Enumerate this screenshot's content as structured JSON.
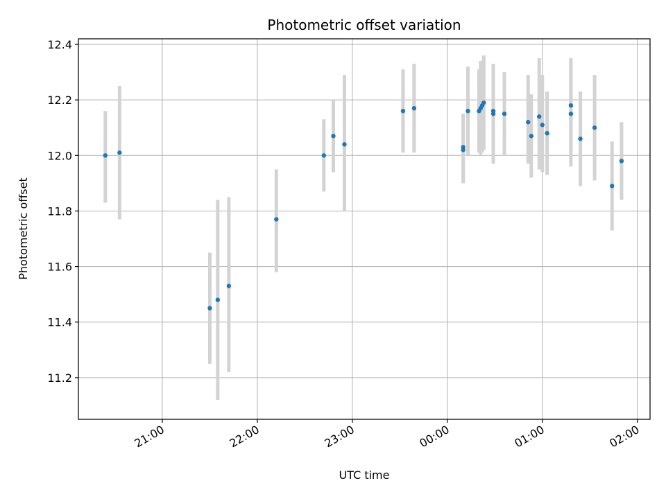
{
  "chart_data": {
    "type": "scatter",
    "title": "Photometric offset variation",
    "xlabel": "UTC time",
    "ylabel": "Photometric offset",
    "x_ticks": [
      "21:00",
      "22:00",
      "23:00",
      "00:00",
      "01:00",
      "02:00"
    ],
    "x_tick_times": [
      "2000-01-01T21:00",
      "2000-01-01T22:00",
      "2000-01-01T23:00",
      "2000-01-02T00:00",
      "2000-01-02T01:00",
      "2000-01-02T02:00"
    ],
    "xlim": [
      "2000-01-01T20:07",
      "2000-01-02T02:08"
    ],
    "y_ticks": [
      "11.2",
      "11.4",
      "11.6",
      "11.8",
      "12.0",
      "12.2",
      "12.4"
    ],
    "ylim": [
      11.05,
      12.42
    ],
    "grid": true,
    "marker_color": "#1f77b4",
    "errorbar_color": "#d3d3d3",
    "points": [
      {
        "x": "2000-01-01T20:24",
        "y": 12.0,
        "low": 11.83,
        "high": 12.16
      },
      {
        "x": "2000-01-01T20:33",
        "y": 12.01,
        "low": 11.77,
        "high": 12.25
      },
      {
        "x": "2000-01-01T21:30",
        "y": 11.45,
        "low": 11.25,
        "high": 11.65
      },
      {
        "x": "2000-01-01T21:35",
        "y": 11.48,
        "low": 11.12,
        "high": 11.84
      },
      {
        "x": "2000-01-01T21:42",
        "y": 11.53,
        "low": 11.22,
        "high": 11.85
      },
      {
        "x": "2000-01-01T22:12",
        "y": 11.77,
        "low": 11.58,
        "high": 11.95
      },
      {
        "x": "2000-01-01T22:42",
        "y": 12.0,
        "low": 11.87,
        "high": 12.13
      },
      {
        "x": "2000-01-01T22:48",
        "y": 12.07,
        "low": 11.94,
        "high": 12.2
      },
      {
        "x": "2000-01-01T22:55",
        "y": 12.04,
        "low": 11.8,
        "high": 12.29
      },
      {
        "x": "2000-01-01T23:32",
        "y": 12.16,
        "low": 12.01,
        "high": 12.31
      },
      {
        "x": "2000-01-01T23:39",
        "y": 12.17,
        "low": 12.01,
        "high": 12.33
      },
      {
        "x": "2000-01-02T00:10",
        "y": 12.02,
        "low": 11.9,
        "high": 12.15
      },
      {
        "x": "2000-01-02T00:10",
        "y": 12.03,
        "low": 11.91,
        "high": 12.15
      },
      {
        "x": "2000-01-02T00:13",
        "y": 12.16,
        "low": 12.0,
        "high": 12.32
      },
      {
        "x": "2000-01-02T00:20",
        "y": 12.16,
        "low": 12.01,
        "high": 12.31
      },
      {
        "x": "2000-01-02T00:21",
        "y": 12.17,
        "low": 12.0,
        "high": 12.34
      },
      {
        "x": "2000-01-02T00:22",
        "y": 12.18,
        "low": 12.01,
        "high": 12.34
      },
      {
        "x": "2000-01-02T00:23",
        "y": 12.19,
        "low": 12.02,
        "high": 12.36
      },
      {
        "x": "2000-01-02T00:29",
        "y": 12.15,
        "low": 11.97,
        "high": 12.33
      },
      {
        "x": "2000-01-02T00:29",
        "y": 12.16,
        "low": 11.99,
        "high": 12.33
      },
      {
        "x": "2000-01-02T00:36",
        "y": 12.15,
        "low": 12.0,
        "high": 12.3
      },
      {
        "x": "2000-01-02T00:51",
        "y": 12.12,
        "low": 11.97,
        "high": 12.29
      },
      {
        "x": "2000-01-02T00:53",
        "y": 12.07,
        "low": 11.92,
        "high": 12.22
      },
      {
        "x": "2000-01-02T00:58",
        "y": 12.14,
        "low": 11.95,
        "high": 12.35
      },
      {
        "x": "2000-01-02T01:00",
        "y": 12.11,
        "low": 11.94,
        "high": 12.29
      },
      {
        "x": "2000-01-02T01:03",
        "y": 12.08,
        "low": 11.93,
        "high": 12.23
      },
      {
        "x": "2000-01-02T01:18",
        "y": 12.15,
        "low": 11.96,
        "high": 12.35
      },
      {
        "x": "2000-01-02T01:18",
        "y": 12.18,
        "low": 12.01,
        "high": 12.35
      },
      {
        "x": "2000-01-02T01:24",
        "y": 12.06,
        "low": 11.89,
        "high": 12.23
      },
      {
        "x": "2000-01-02T01:33",
        "y": 12.1,
        "low": 11.91,
        "high": 12.29
      },
      {
        "x": "2000-01-02T01:44",
        "y": 11.89,
        "low": 11.73,
        "high": 12.05
      },
      {
        "x": "2000-01-02T01:50",
        "y": 11.98,
        "low": 11.84,
        "high": 12.12
      }
    ]
  }
}
